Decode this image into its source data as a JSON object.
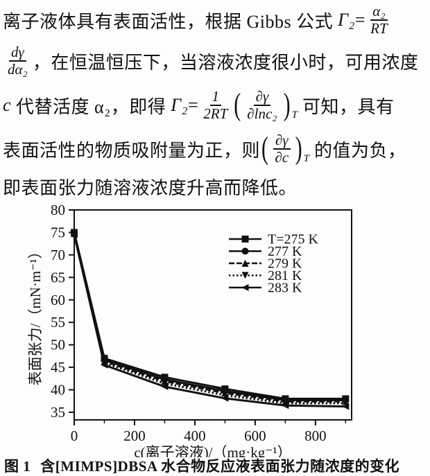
{
  "doc": {
    "line1": {
      "t1": "离子液体具有表面活性，根据 Gibbs 公式 ",
      "lhs": "Γ₂",
      "eq": "=",
      "frac": {
        "num": "α₂",
        "den": "RT"
      }
    },
    "line2": {
      "frac": {
        "num": "dγ",
        "den": "dα₂"
      },
      "t1": "，在恒温恒压下，当溶液浓度很小时，可用浓度"
    },
    "line3": {
      "var": "c",
      "t1": " 代替活度 α₂，即得 ",
      "lhs": "Γ₂",
      "eq": "=",
      "frac1": {
        "num": "1",
        "den": "2RT"
      },
      "pfrac": {
        "num": "∂γ",
        "den": "∂lnc₂"
      },
      "psub": "T",
      "t2": " 可知，具有"
    },
    "line4": {
      "t1": "表面活性的物质吸附量为正，则",
      "pfrac": {
        "num": "∂γ",
        "den": "∂c"
      },
      "psub": "T",
      "t2": " 的值为负，"
    },
    "line5": {
      "t1": "即表面张力随溶液浓度升高而降低。"
    }
  },
  "figure": {
    "caption_label": "图 1",
    "caption_text": "含[MIMPS]DBSA 水合物反应液表面张力随浓度的变化"
  },
  "chart_data": {
    "type": "line",
    "title": "",
    "xlabel": "c(离子溶液)/（mg·kg⁻¹）",
    "ylabel": "表面张力/（mN·m⁻¹）",
    "x": [
      0,
      100,
      300,
      500,
      700,
      900
    ],
    "series": [
      {
        "name": "T=275 K",
        "marker": "square",
        "dash": "solid",
        "values": [
          75.0,
          47.0,
          42.8,
          40.2,
          38.0,
          38.0
        ]
      },
      {
        "name": "277 K",
        "marker": "circle",
        "dash": "solid",
        "values": [
          74.8,
          46.6,
          42.3,
          39.7,
          37.7,
          37.7
        ]
      },
      {
        "name": "279 K",
        "marker": "triangle-up",
        "dash": "dashed",
        "values": [
          74.7,
          46.3,
          41.9,
          39.3,
          37.4,
          37.4
        ]
      },
      {
        "name": "281 K",
        "marker": "triangle-down",
        "dash": "dotted",
        "values": [
          74.6,
          46.0,
          41.4,
          38.8,
          37.0,
          37.0
        ]
      },
      {
        "name": "283 K",
        "marker": "triangle-left",
        "dash": "solid",
        "values": [
          74.5,
          45.5,
          40.7,
          38.1,
          36.5,
          36.3
        ]
      }
    ],
    "xticks": [
      0,
      200,
      400,
      600,
      800
    ],
    "xticks_minor": [
      100,
      300,
      500,
      700,
      900
    ],
    "yticks": [
      35,
      40,
      45,
      50,
      55,
      60,
      65,
      70,
      75,
      80
    ],
    "xlim": [
      0,
      920
    ],
    "ylim": [
      33.3,
      80
    ],
    "grid": false,
    "legend_position": "upper-center-inside",
    "line_color": "#111111"
  }
}
